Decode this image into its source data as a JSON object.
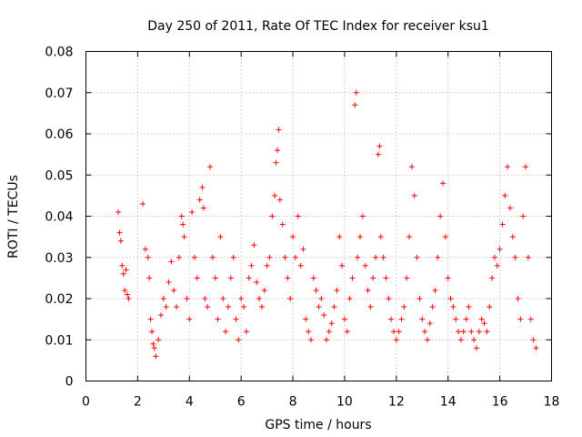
{
  "chart_data": {
    "type": "scatter",
    "title": "Day 250 of 2011, Rate Of TEC Index for receiver ksu1",
    "xlabel": "GPS time / hours",
    "ylabel": "ROTI / TECUs",
    "xlim": [
      0,
      18
    ],
    "ylim": [
      0,
      0.08
    ],
    "x_ticks": [
      "0",
      "2",
      "4",
      "6",
      "8",
      "10",
      "12",
      "14",
      "16",
      "18"
    ],
    "y_ticks": [
      "0",
      "0.01",
      "0.02",
      "0.03",
      "0.04",
      "0.05",
      "0.06",
      "0.07",
      "0.08"
    ],
    "grid": true,
    "marker": "+",
    "color": "#ff0000",
    "series": [
      {
        "x": [
          1.25,
          1.3,
          1.35,
          1.4,
          1.45,
          1.5,
          1.55,
          1.6,
          1.65,
          2.2,
          2.3,
          2.4,
          2.45,
          2.5,
          2.55,
          2.6,
          2.65,
          2.7,
          2.8,
          2.9,
          3.0,
          3.1,
          3.2,
          3.3,
          3.4,
          3.5,
          3.6,
          3.7,
          3.75,
          3.8,
          3.9,
          4.0,
          4.1,
          4.2,
          4.3,
          4.4,
          4.5,
          4.55,
          4.6,
          4.7,
          4.8,
          4.9,
          5.0,
          5.1,
          5.2,
          5.3,
          5.4,
          5.5,
          5.6,
          5.7,
          5.8,
          5.9,
          6.0,
          6.1,
          6.2,
          6.3,
          6.4,
          6.5,
          6.6,
          6.7,
          6.8,
          6.9,
          7.0,
          7.1,
          7.2,
          7.3,
          7.35,
          7.4,
          7.45,
          7.5,
          7.6,
          7.7,
          7.8,
          7.9,
          8.0,
          8.1,
          8.2,
          8.3,
          8.4,
          8.5,
          8.6,
          8.7,
          8.8,
          8.9,
          9.0,
          9.1,
          9.2,
          9.3,
          9.4,
          9.5,
          9.6,
          9.7,
          9.8,
          9.9,
          10.0,
          10.1,
          10.2,
          10.3,
          10.4,
          10.45,
          10.5,
          10.6,
          10.7,
          10.8,
          10.9,
          11.0,
          11.1,
          11.2,
          11.3,
          11.35,
          11.4,
          11.5,
          11.6,
          11.7,
          11.8,
          11.9,
          12.0,
          12.1,
          12.2,
          12.3,
          12.4,
          12.5,
          12.6,
          12.7,
          12.8,
          12.9,
          13.0,
          13.1,
          13.2,
          13.3,
          13.4,
          13.5,
          13.6,
          13.7,
          13.8,
          13.9,
          14.0,
          14.1,
          14.2,
          14.3,
          14.4,
          14.5,
          14.6,
          14.7,
          14.8,
          14.9,
          15.0,
          15.1,
          15.2,
          15.3,
          15.4,
          15.5,
          15.6,
          15.7,
          15.8,
          15.9,
          16.0,
          16.1,
          16.2,
          16.3,
          16.4,
          16.5,
          16.6,
          16.7,
          16.8,
          16.9,
          17.0,
          17.1,
          17.2,
          17.3,
          17.4
        ],
        "y": [
          0.041,
          0.036,
          0.034,
          0.028,
          0.026,
          0.022,
          0.027,
          0.021,
          0.02,
          0.043,
          0.032,
          0.03,
          0.025,
          0.015,
          0.012,
          0.009,
          0.008,
          0.006,
          0.01,
          0.016,
          0.02,
          0.018,
          0.024,
          0.029,
          0.022,
          0.018,
          0.03,
          0.04,
          0.038,
          0.035,
          0.02,
          0.015,
          0.041,
          0.03,
          0.025,
          0.044,
          0.047,
          0.042,
          0.02,
          0.018,
          0.052,
          0.03,
          0.025,
          0.015,
          0.035,
          0.02,
          0.012,
          0.018,
          0.025,
          0.03,
          0.015,
          0.01,
          0.02,
          0.018,
          0.012,
          0.025,
          0.028,
          0.033,
          0.024,
          0.02,
          0.018,
          0.022,
          0.028,
          0.03,
          0.04,
          0.045,
          0.053,
          0.056,
          0.061,
          0.044,
          0.038,
          0.03,
          0.025,
          0.02,
          0.035,
          0.03,
          0.04,
          0.028,
          0.032,
          0.015,
          0.012,
          0.01,
          0.025,
          0.022,
          0.018,
          0.02,
          0.016,
          0.01,
          0.012,
          0.014,
          0.018,
          0.022,
          0.035,
          0.028,
          0.015,
          0.012,
          0.02,
          0.025,
          0.067,
          0.07,
          0.03,
          0.035,
          0.04,
          0.028,
          0.022,
          0.018,
          0.025,
          0.03,
          0.055,
          0.057,
          0.035,
          0.03,
          0.025,
          0.02,
          0.015,
          0.012,
          0.01,
          0.012,
          0.015,
          0.018,
          0.025,
          0.035,
          0.052,
          0.045,
          0.03,
          0.02,
          0.015,
          0.012,
          0.01,
          0.014,
          0.018,
          0.022,
          0.03,
          0.04,
          0.048,
          0.035,
          0.025,
          0.02,
          0.018,
          0.015,
          0.012,
          0.01,
          0.012,
          0.015,
          0.018,
          0.012,
          0.01,
          0.008,
          0.012,
          0.015,
          0.014,
          0.012,
          0.018,
          0.025,
          0.03,
          0.028,
          0.032,
          0.038,
          0.045,
          0.052,
          0.042,
          0.035,
          0.03,
          0.02,
          0.015,
          0.04,
          0.052,
          0.03,
          0.015,
          0.01,
          0.008
        ]
      }
    ]
  }
}
